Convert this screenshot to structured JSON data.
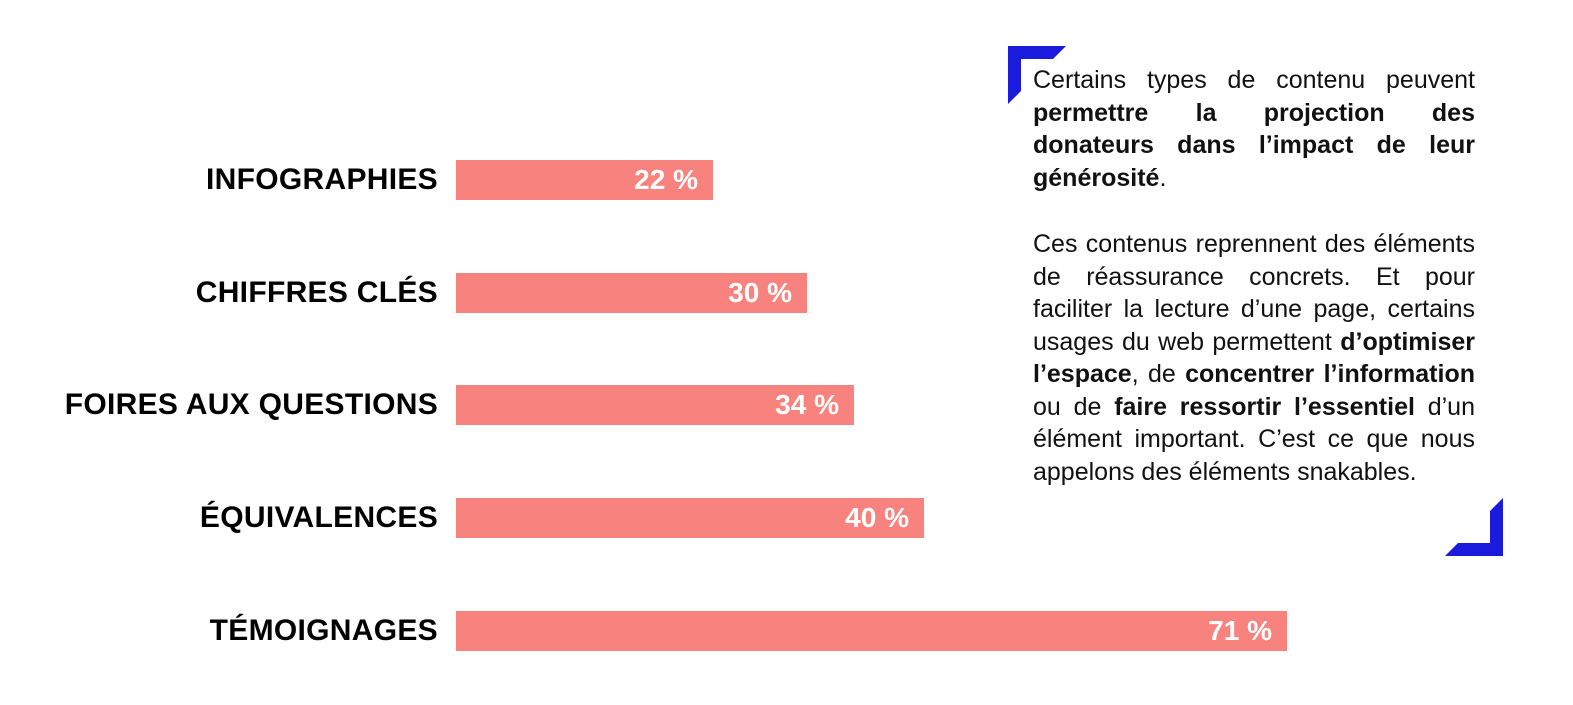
{
  "page": {
    "background": "#FFFFFF"
  },
  "chart_data": {
    "type": "bar",
    "orientation": "horizontal",
    "title": "",
    "xlabel": "",
    "ylabel": "",
    "xlim": [
      0,
      100
    ],
    "grid": false,
    "legend": false,
    "unit": "%",
    "categories": [
      "INFOGRAPHIES",
      "CHIFFRES CLÉS",
      "FOIRES AUX QUESTIONS",
      "ÉQUIVALENCES",
      "TÉMOIGNAGES"
    ],
    "values": [
      22,
      30,
      34,
      40,
      71
    ],
    "value_labels": [
      "22 %",
      "30 %",
      "34 %",
      "40 %",
      "71 %"
    ],
    "bar_color": "#F8837E",
    "value_text_color": "#FFFFFF",
    "label_text_color": "#000000"
  },
  "commentary": {
    "bracket_color": "#1B1BDD",
    "paragraphs": [
      {
        "segments": [
          {
            "text": "Certains types de contenu peuvent ",
            "bold": false
          },
          {
            "text": "permettre la projection des donateurs dans l’impact de leur générosité",
            "bold": true
          },
          {
            "text": ".",
            "bold": false
          }
        ]
      },
      {
        "segments": [
          {
            "text": "Ces contenus reprennent des éléments de réassurance concrets. Et pour faciliter la lecture d’une page, certains usages du web permettent ",
            "bold": false
          },
          {
            "text": "d’optimiser l’espace",
            "bold": true
          },
          {
            "text": ", de ",
            "bold": false
          },
          {
            "text": "concentrer l’information",
            "bold": true
          },
          {
            "text": " ou de ",
            "bold": false
          },
          {
            "text": "faire ressortir l’essentiel",
            "bold": true
          },
          {
            "text": " d’un élément important. C’est ce que nous appelons des éléments snakables.",
            "bold": false
          }
        ]
      }
    ]
  }
}
